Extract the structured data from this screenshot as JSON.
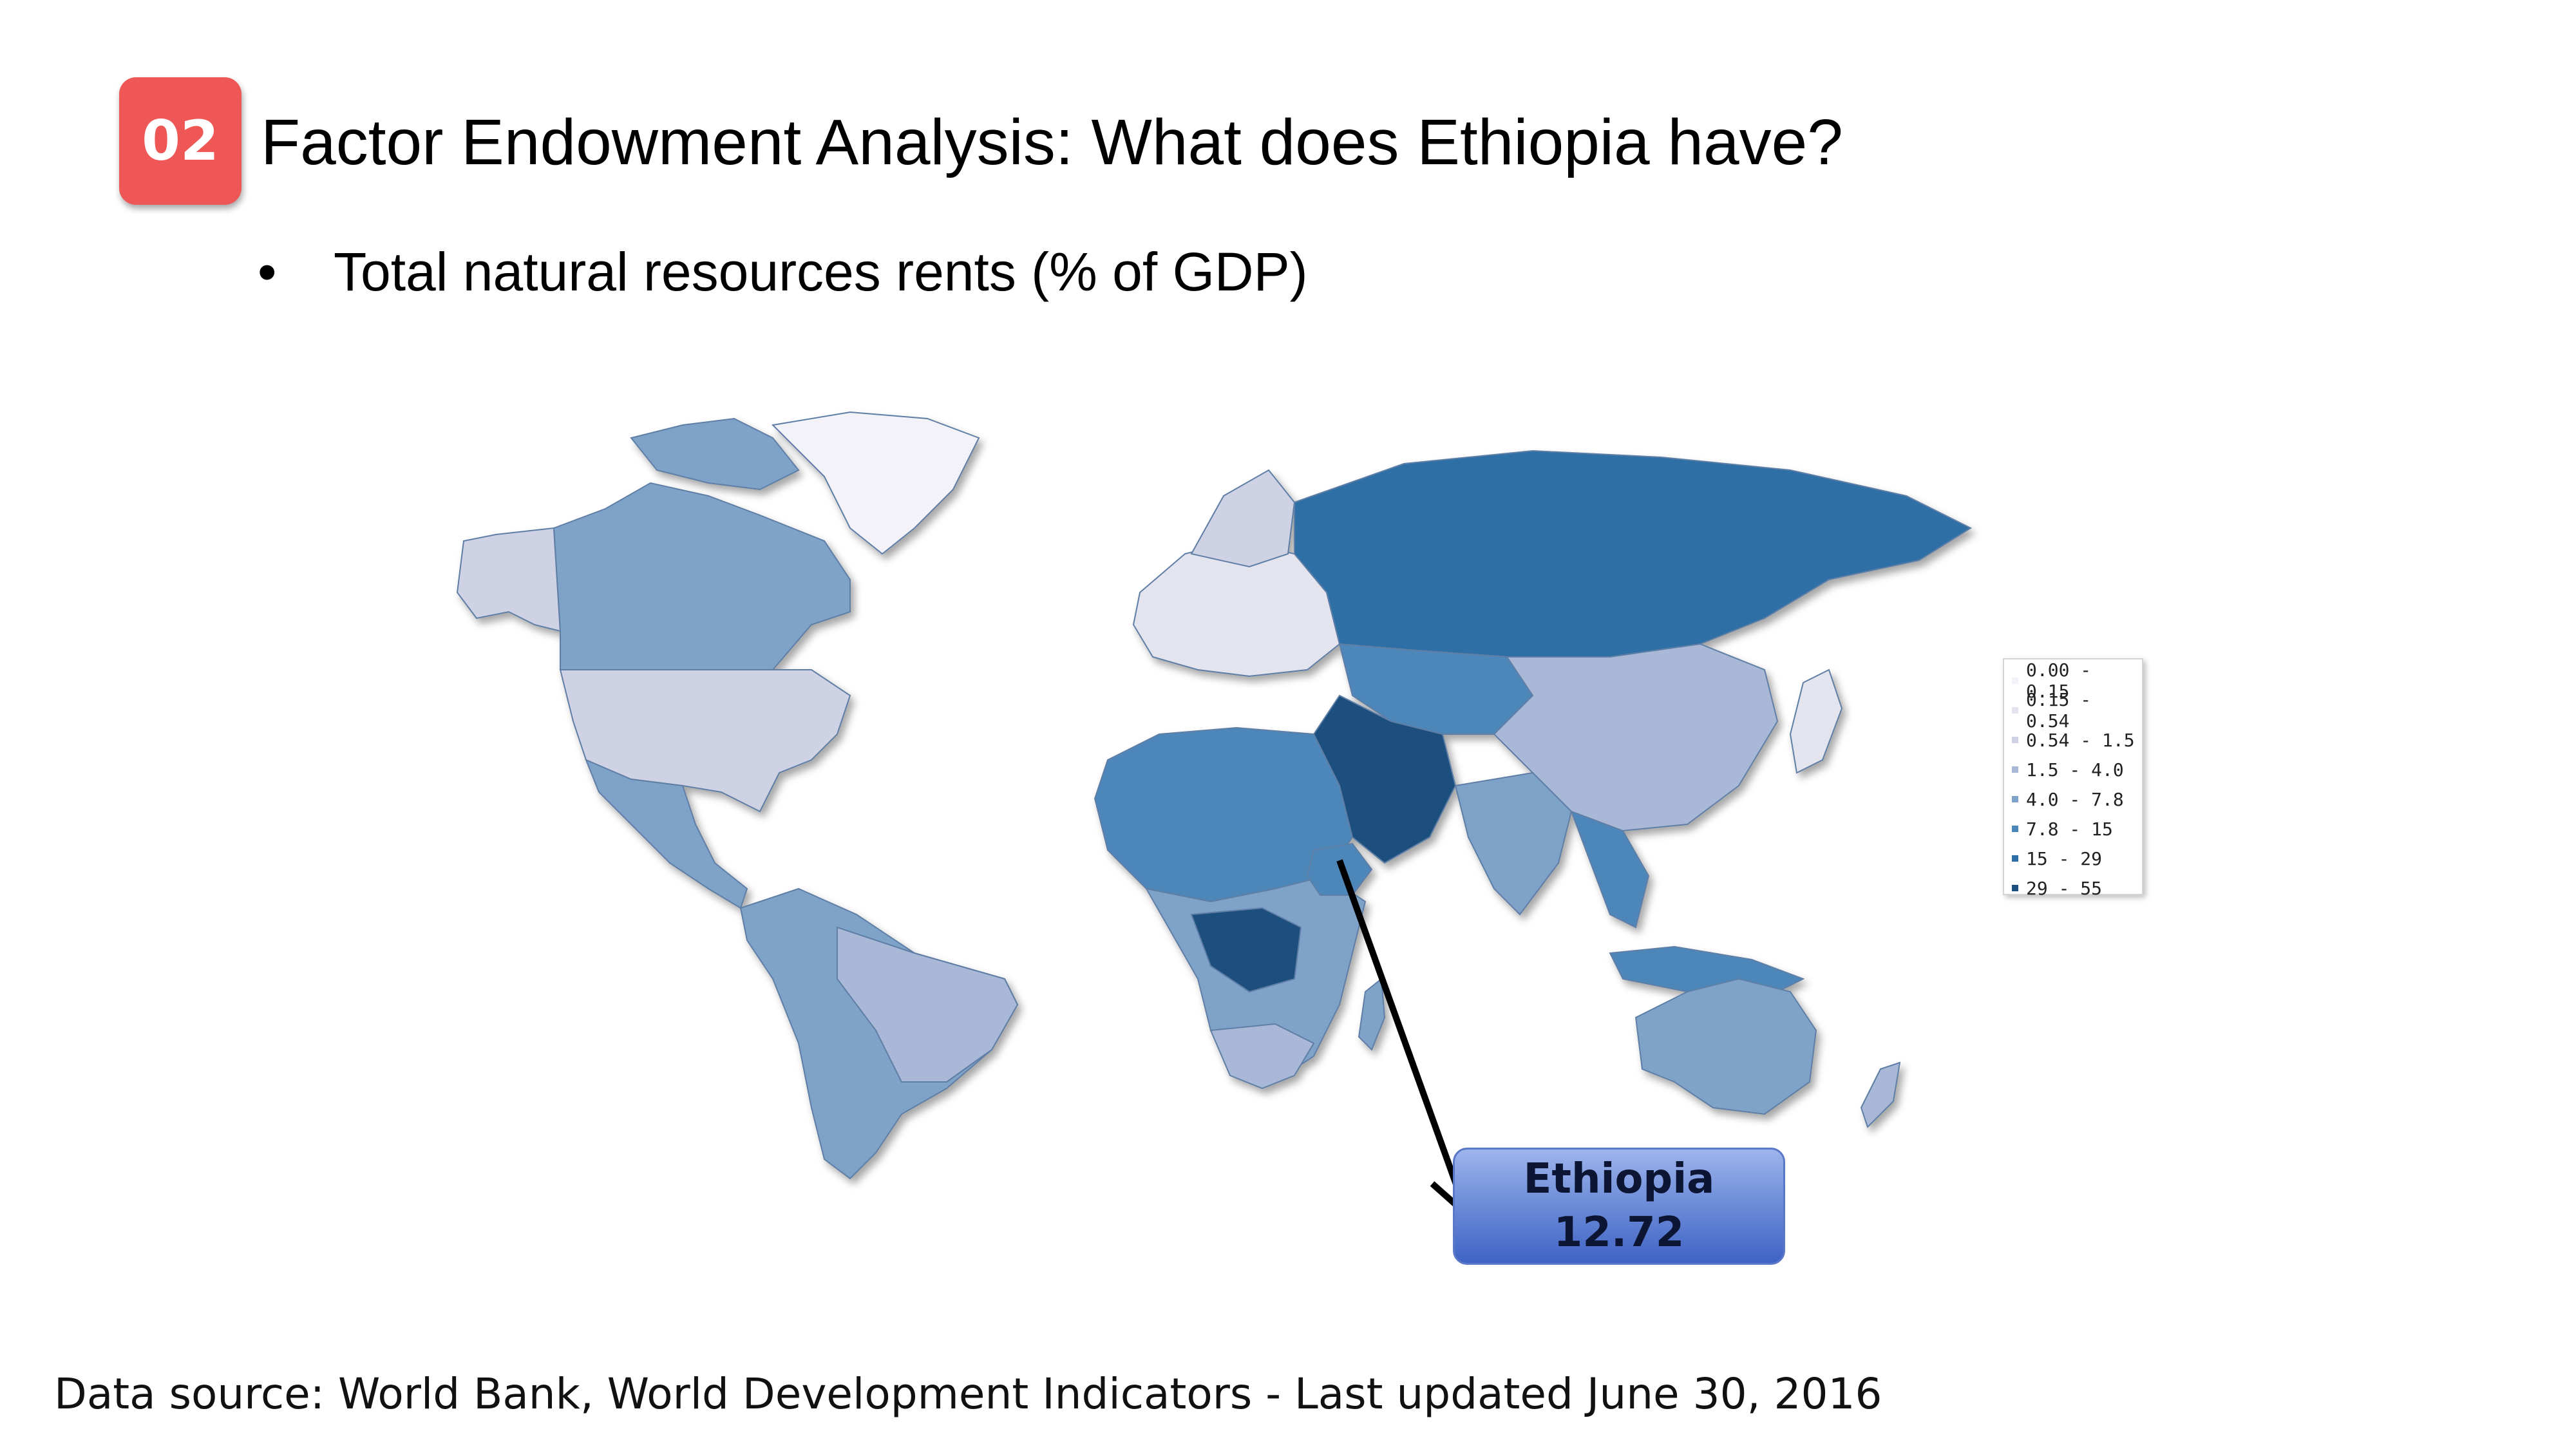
{
  "slide": {
    "number_badge": "02",
    "title": "Factor Endowment Analysis: What does Ethiopia have?",
    "bullet_symbol": "•",
    "bullet_text": "Total natural resources rents (% of GDP)"
  },
  "map": {
    "type": "choropleth",
    "legend": [
      {
        "label": "0.00 - 0.15",
        "color": "#f2f2f8"
      },
      {
        "label": "0.15 - 0.54",
        "color": "#e4e4ee"
      },
      {
        "label": "0.54 - 1.5",
        "color": "#cfd2e4"
      },
      {
        "label": "1.5 - 4.0",
        "color": "#a9b8d6"
      },
      {
        "label": "4.0 - 7.8",
        "color": "#7fa2c9"
      },
      {
        "label": "7.8 - 15",
        "color": "#4d87ba"
      },
      {
        "label": "15 - 29",
        "color": "#2d6fa6"
      },
      {
        "label": "29 - 55",
        "color": "#1c4f7e"
      }
    ],
    "callout": {
      "country": "Ethiopia",
      "value": "12.72"
    }
  },
  "footer": {
    "source": "Data source: World Bank, World Development Indicators - Last updated June 30, 2016"
  }
}
